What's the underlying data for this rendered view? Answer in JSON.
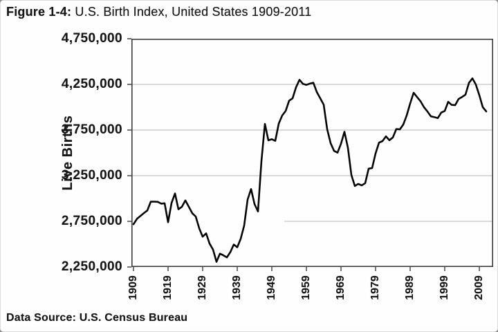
{
  "title": {
    "prefix": "Figure 1-4:",
    "rest": " U.S. Birth Index, United States 1909-2011"
  },
  "source": "Data Source: U.S. Census Bureau",
  "chart_data": {
    "type": "line",
    "title": "Figure 1-4: U.S. Birth Index, United States 1909-2011",
    "xlabel": "",
    "ylabel": "Live Births",
    "ylim": [
      2250000,
      4750000
    ],
    "grid": "horizontal",
    "legend": "none",
    "line_color": "#050505",
    "gridline_color": "#b5b5b5",
    "y_tick_labels": [
      "4,750,000",
      "4,250,000",
      "3,750,000",
      "3,250,000",
      "2,750,000",
      "2,250,000"
    ],
    "y_tick_values": [
      4750000,
      4250000,
      3750000,
      3250000,
      2750000,
      2250000
    ],
    "gridline_values": [
      4250000,
      3750000,
      3250000,
      2750000
    ],
    "x_ticks": [
      1909,
      1919,
      1929,
      1939,
      1949,
      1959,
      1969,
      1979,
      1989,
      1999,
      2009
    ],
    "years": [
      1909,
      1910,
      1911,
      1912,
      1913,
      1914,
      1915,
      1916,
      1917,
      1918,
      1919,
      1920,
      1921,
      1922,
      1923,
      1924,
      1925,
      1926,
      1927,
      1928,
      1929,
      1930,
      1931,
      1932,
      1933,
      1934,
      1935,
      1936,
      1937,
      1938,
      1939,
      1940,
      1941,
      1942,
      1943,
      1944,
      1945,
      1946,
      1947,
      1948,
      1949,
      1950,
      1951,
      1952,
      1953,
      1954,
      1955,
      1956,
      1957,
      1958,
      1959,
      1960,
      1961,
      1962,
      1963,
      1964,
      1965,
      1966,
      1967,
      1968,
      1969,
      1970,
      1971,
      1972,
      1973,
      1974,
      1975,
      1976,
      1977,
      1978,
      1979,
      1980,
      1981,
      1982,
      1983,
      1984,
      1985,
      1986,
      1987,
      1988,
      1989,
      1990,
      1991,
      1992,
      1993,
      1994,
      1995,
      1996,
      1997,
      1998,
      1999,
      2000,
      2001,
      2002,
      2003,
      2004,
      2005,
      2006,
      2007,
      2008,
      2009,
      2010,
      2011
    ],
    "values": [
      2718000,
      2777000,
      2809000,
      2840000,
      2869000,
      2966000,
      2965000,
      2964000,
      2944000,
      2948000,
      2740000,
      2950000,
      3055000,
      2882000,
      2910000,
      2979000,
      2909000,
      2839000,
      2802000,
      2674000,
      2582000,
      2618000,
      2506000,
      2440000,
      2307000,
      2396000,
      2377000,
      2355000,
      2413000,
      2496000,
      2466000,
      2559000,
      2703000,
      2989000,
      3104000,
      2939000,
      2858000,
      3411000,
      3817000,
      3637000,
      3649000,
      3632000,
      3820000,
      3909000,
      3959000,
      4071000,
      4097000,
      4218000,
      4300000,
      4255000,
      4245000,
      4258000,
      4268000,
      4167000,
      4098000,
      4027000,
      3760000,
      3606000,
      3521000,
      3502000,
      3600000,
      3731000,
      3556000,
      3258000,
      3137000,
      3160000,
      3144000,
      3168000,
      3327000,
      3333000,
      3494000,
      3612000,
      3629000,
      3681000,
      3639000,
      3669000,
      3761000,
      3757000,
      3809000,
      3910000,
      4041000,
      4158000,
      4111000,
      4065000,
      4000000,
      3953000,
      3900000,
      3891000,
      3881000,
      3942000,
      3959000,
      4059000,
      4026000,
      4022000,
      4090000,
      4112000,
      4138000,
      4266000,
      4316000,
      4248000,
      4131000,
      4000000,
      3954000
    ]
  }
}
